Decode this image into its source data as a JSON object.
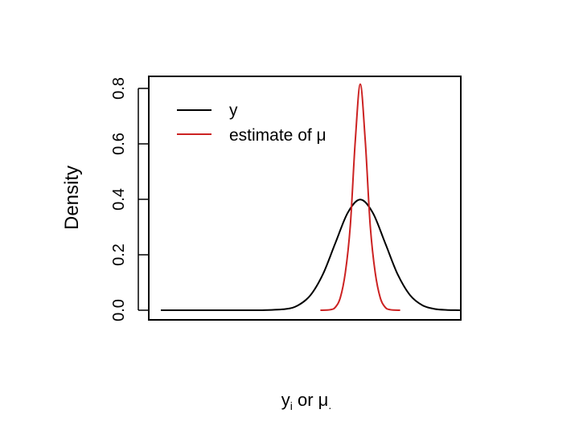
{
  "chart_data": {
    "type": "line",
    "title": "",
    "ylabel": "Density",
    "xlabel": {
      "base": "y",
      "sub": "i",
      "mid": " or ",
      "mu": "μ",
      "dot": "."
    },
    "ylim": [
      0,
      0.85
    ],
    "yticks": [
      0.0,
      0.2,
      0.4,
      0.6,
      0.8
    ],
    "ytick_labels": [
      "0.0",
      "0.2",
      "0.4",
      "0.6",
      "0.8"
    ],
    "xticks_shown": false,
    "legend_position": "top-left",
    "series": [
      {
        "name": "y",
        "color": "#000000",
        "x": [
          -8.0,
          -7.0,
          -6.0,
          -5.0,
          -4.0,
          -3.0,
          -2.5,
          -2.0,
          -1.5,
          -1.0,
          -0.5,
          0.0,
          0.5,
          1.0,
          1.5,
          2.0,
          2.5,
          3.0,
          3.5,
          4.0
        ],
        "values": [
          0.0,
          0.0,
          0.0,
          0.0,
          0.0001,
          0.0044,
          0.0175,
          0.054,
          0.1295,
          0.242,
          0.352,
          0.399,
          0.352,
          0.242,
          0.1295,
          0.054,
          0.0175,
          0.0044,
          0.0009,
          0.0001
        ]
      },
      {
        "name": "estimate of μ",
        "color": "#cc2222",
        "x": [
          -1.6,
          -1.2,
          -1.0,
          -0.8,
          -0.6,
          -0.4,
          -0.2,
          0.0,
          0.2,
          0.4,
          0.6,
          0.8,
          1.0,
          1.2,
          1.6
        ],
        "values": [
          0.0,
          0.0019,
          0.0108,
          0.0456,
          0.1352,
          0.3046,
          0.6112,
          0.815,
          0.6112,
          0.3046,
          0.1352,
          0.0456,
          0.0108,
          0.0019,
          0.0
        ]
      }
    ],
    "legend": [
      {
        "label": "y",
        "color": "#000000"
      },
      {
        "label": "estimate of μ",
        "color": "#cc2222"
      }
    ]
  }
}
